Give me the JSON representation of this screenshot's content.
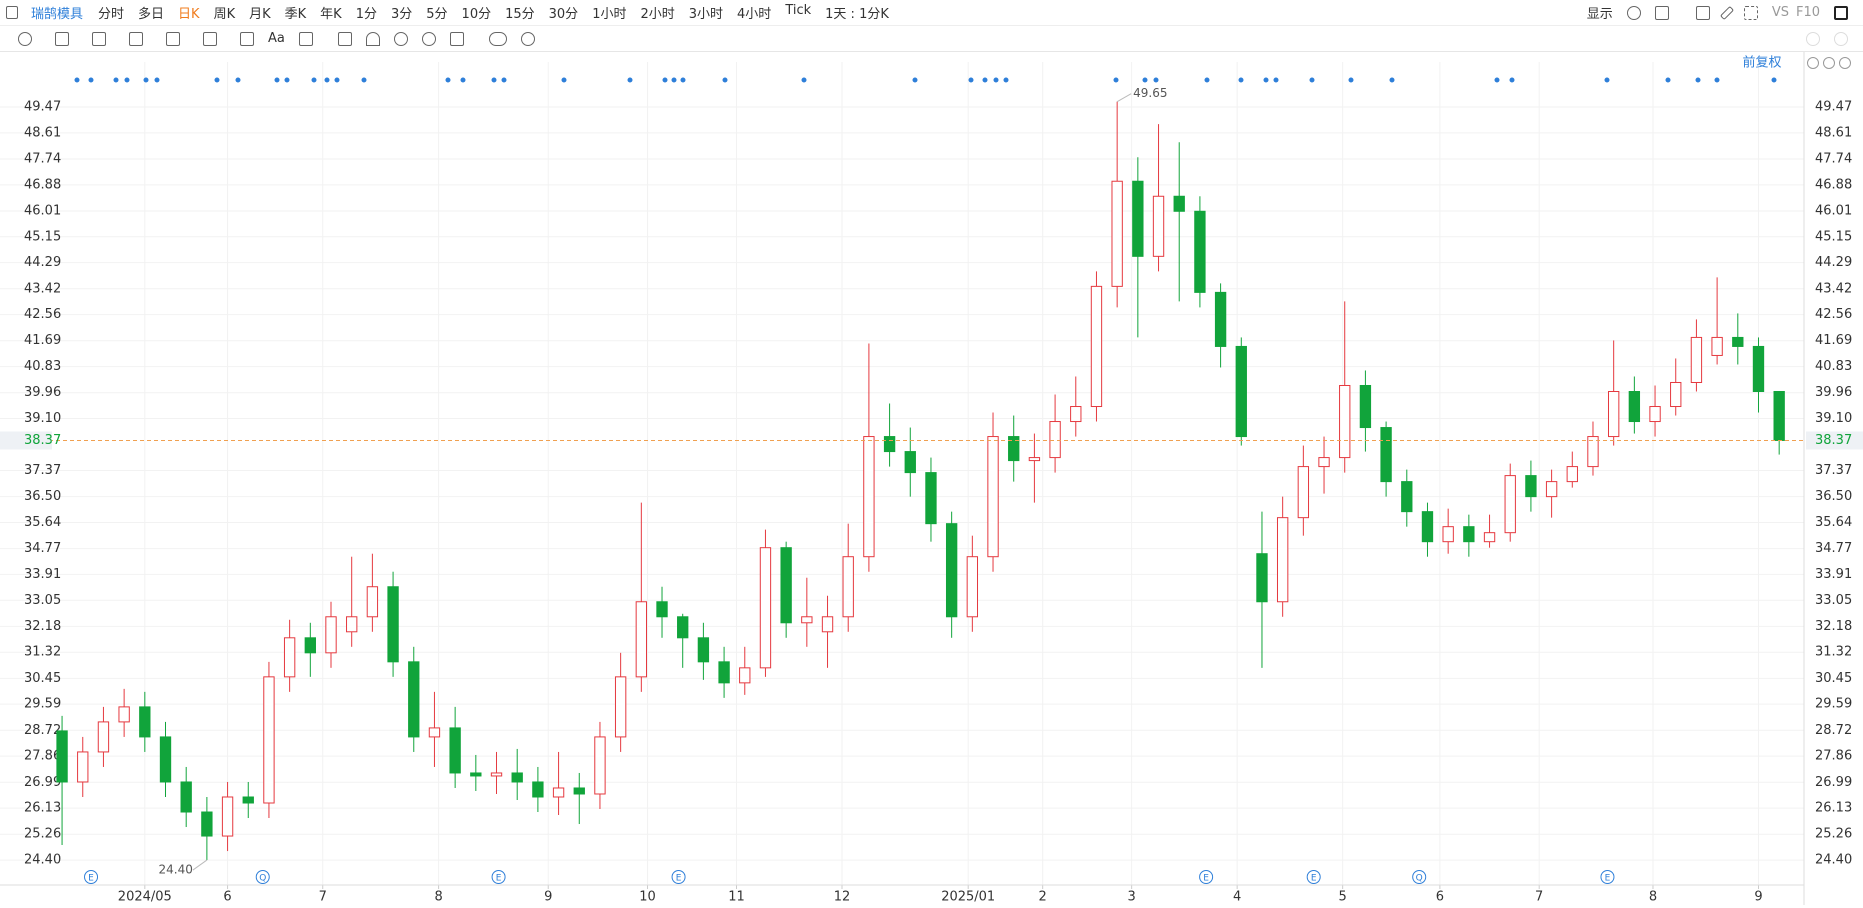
{
  "toolbar": {
    "stock": "瑞鹄模具",
    "periods": [
      "分时",
      "多日",
      "日K",
      "周K",
      "月K",
      "季K",
      "年K",
      "1分",
      "3分",
      "5分",
      "10分",
      "15分",
      "30分",
      "1小时",
      "2小时",
      "3小时",
      "4小时",
      "Tick"
    ],
    "active": 2,
    "interval": "1天 : 1分K",
    "display": "显示",
    "vs": "VS",
    "f10": "F10",
    "text_tool": "Aa",
    "adjust": "前复权"
  },
  "chart_data": {
    "type": "candlestick",
    "up_color": "#e5393f",
    "down_color": "#11a43b",
    "grid": true,
    "open": [
      28.7,
      27.0,
      28.0,
      29.0,
      29.5,
      28.5,
      27.0,
      26.0,
      25.2,
      26.5,
      26.3,
      30.5,
      31.8,
      31.3,
      32.0,
      32.5,
      33.5,
      31.0,
      28.5,
      28.8,
      27.3,
      27.2,
      27.3,
      27.0,
      26.5,
      26.8,
      26.6,
      28.5,
      30.5,
      33.0,
      32.5,
      31.8,
      31.0,
      30.3,
      30.8,
      34.8,
      32.3,
      32.0,
      32.5,
      34.5,
      38.5,
      38.0,
      37.3,
      35.6,
      32.5,
      34.5,
      38.5,
      37.7,
      37.8,
      39.0,
      39.5,
      43.5,
      47.0,
      44.5,
      46.5,
      46.0,
      43.3,
      41.5,
      34.6,
      33.0,
      35.8,
      37.5,
      37.8,
      40.2,
      38.8,
      37.0,
      36.0,
      35.0,
      35.5,
      35.0,
      35.3,
      37.2,
      36.5,
      37.0,
      37.5,
      38.5,
      40.0,
      39.0,
      39.5,
      40.3,
      41.2,
      41.8,
      41.5,
      40.0
    ],
    "high": [
      29.2,
      28.5,
      29.5,
      30.1,
      30.0,
      29.0,
      27.5,
      26.5,
      27.0,
      27.0,
      31.0,
      32.4,
      32.3,
      33.0,
      34.5,
      34.6,
      34.0,
      31.5,
      30.0,
      29.5,
      27.9,
      28.0,
      28.1,
      27.5,
      28.0,
      27.3,
      29.0,
      31.3,
      36.3,
      33.5,
      32.6,
      32.3,
      31.5,
      31.5,
      35.4,
      35.0,
      33.8,
      33.2,
      35.6,
      41.6,
      39.6,
      38.8,
      37.8,
      36.0,
      35.2,
      39.3,
      39.2,
      38.6,
      39.9,
      40.5,
      44.0,
      49.65,
      47.8,
      48.9,
      48.3,
      46.5,
      43.6,
      41.8,
      36.0,
      36.5,
      38.2,
      38.5,
      43.0,
      40.7,
      39.0,
      37.4,
      36.3,
      36.1,
      35.9,
      35.9,
      37.6,
      37.7,
      37.4,
      38.0,
      39.0,
      41.7,
      40.5,
      40.2,
      41.1,
      42.4,
      43.8,
      42.6,
      41.8,
      40.0
    ],
    "low": [
      24.9,
      26.5,
      27.5,
      28.5,
      28.0,
      26.5,
      25.5,
      24.4,
      24.7,
      25.8,
      25.8,
      30.0,
      30.5,
      30.8,
      31.5,
      32.0,
      30.5,
      28.0,
      27.5,
      26.8,
      26.7,
      26.6,
      26.4,
      26.0,
      25.9,
      25.6,
      26.1,
      28.0,
      30.0,
      31.8,
      30.8,
      30.4,
      29.8,
      29.9,
      30.5,
      31.8,
      31.5,
      30.8,
      32.0,
      34.0,
      37.5,
      36.5,
      35.0,
      31.8,
      32.0,
      34.0,
      37.0,
      36.3,
      37.3,
      38.5,
      39.0,
      42.8,
      41.8,
      44.0,
      43.0,
      42.8,
      40.8,
      38.2,
      30.8,
      32.5,
      35.2,
      36.6,
      37.3,
      38.0,
      36.5,
      35.5,
      34.5,
      34.6,
      34.5,
      34.8,
      35.0,
      36.0,
      35.8,
      36.8,
      37.2,
      38.2,
      38.6,
      38.5,
      39.2,
      40.0,
      40.9,
      40.9,
      39.3,
      37.9
    ],
    "close": [
      27.0,
      28.0,
      29.0,
      29.5,
      28.5,
      27.0,
      26.0,
      25.2,
      26.5,
      26.3,
      30.5,
      31.8,
      31.3,
      32.5,
      32.5,
      33.5,
      31.0,
      28.5,
      28.8,
      27.3,
      27.2,
      27.3,
      27.0,
      26.5,
      26.8,
      26.6,
      28.5,
      30.5,
      33.0,
      32.5,
      31.8,
      31.0,
      30.3,
      30.8,
      34.8,
      32.3,
      32.5,
      32.5,
      34.5,
      38.5,
      38.0,
      37.3,
      35.6,
      32.5,
      34.5,
      38.5,
      37.7,
      37.8,
      39.0,
      39.5,
      43.5,
      47.0,
      44.5,
      46.5,
      46.0,
      43.3,
      41.5,
      38.5,
      33.0,
      35.8,
      37.5,
      37.8,
      40.2,
      38.8,
      37.0,
      36.0,
      35.0,
      35.5,
      35.0,
      35.3,
      37.2,
      36.5,
      37.0,
      37.5,
      38.5,
      40.0,
      39.0,
      39.5,
      40.3,
      41.8,
      41.8,
      41.5,
      40.0,
      38.37
    ],
    "xlim": [
      -3,
      84.2
    ],
    "xticks": [
      {
        "value": 4.0,
        "label": "2024/05"
      },
      {
        "value": 8.0,
        "label": "6"
      },
      {
        "value": 12.6,
        "label": "7"
      },
      {
        "value": 18.2,
        "label": "8"
      },
      {
        "value": 23.5,
        "label": "9"
      },
      {
        "value": 28.3,
        "label": "10"
      },
      {
        "value": 32.6,
        "label": "11"
      },
      {
        "value": 37.7,
        "label": "12"
      },
      {
        "value": 43.8,
        "label": "2025/01"
      },
      {
        "value": 47.4,
        "label": "2"
      },
      {
        "value": 51.7,
        "label": "3"
      },
      {
        "value": 56.8,
        "label": "4"
      },
      {
        "value": 61.9,
        "label": "5"
      },
      {
        "value": 66.6,
        "label": "6"
      },
      {
        "value": 71.4,
        "label": "7"
      },
      {
        "value": 76.9,
        "label": "8"
      },
      {
        "value": 82.0,
        "label": "9"
      }
    ],
    "ylim": [
      23.57,
      50.97
    ],
    "yticks": [
      49.47,
      48.61,
      47.74,
      46.88,
      46.01,
      45.15,
      44.29,
      43.42,
      42.56,
      41.69,
      40.83,
      39.96,
      {
        "value": 39.1,
        "label": "39.10"
      },
      37.37,
      {
        "value": 36.5,
        "label": "36.50"
      },
      35.64,
      34.77,
      33.91,
      33.05,
      32.18,
      31.32,
      30.45,
      29.59,
      28.72,
      27.86,
      26.99,
      26.13,
      25.26,
      {
        "value": 24.4,
        "label": "24.40"
      }
    ],
    "last_price": 38.37,
    "last_color": "#f0a050",
    "annotations": [
      {
        "x": 51,
        "value": 49.65
      },
      {
        "x": 7,
        "value": {
          "value": 24.4,
          "label": "24.40"
        }
      }
    ],
    "events": [
      {
        "x": 1.4,
        "label": "E"
      },
      {
        "x": 9.7,
        "label": "Q"
      },
      {
        "x": 21.1,
        "label": "E"
      },
      {
        "x": 29.8,
        "label": "E"
      },
      {
        "x": 55.3,
        "label": "E"
      },
      {
        "x": 60.5,
        "label": "E"
      },
      {
        "x": 65.6,
        "label": "Q"
      },
      {
        "x": 74.7,
        "label": "E"
      }
    ]
  }
}
